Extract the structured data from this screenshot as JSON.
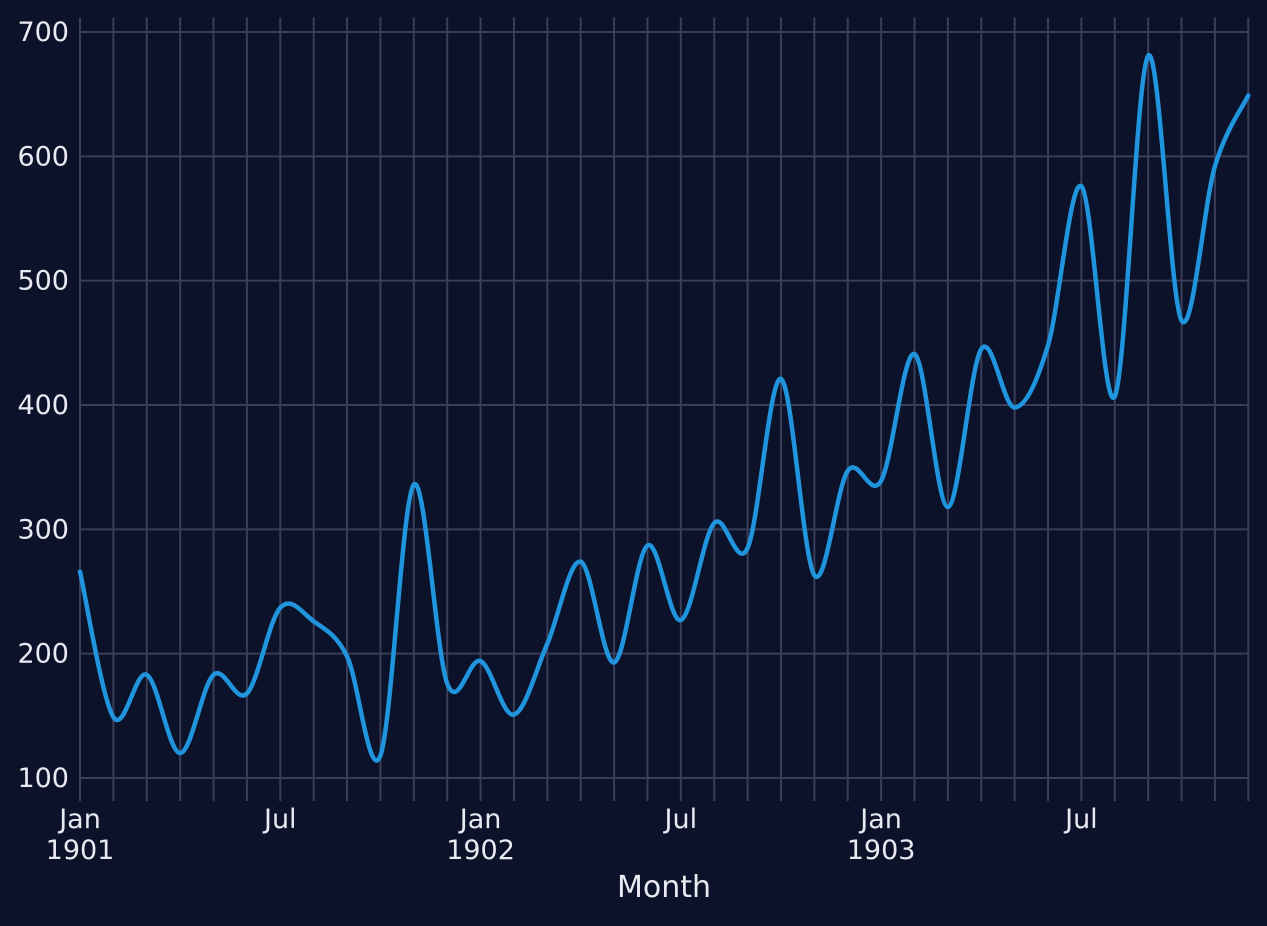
{
  "chart_data": {
    "type": "line",
    "title": "",
    "xlabel": "Month",
    "ylabel": "",
    "x": [
      "Jan 1901",
      "Feb 1901",
      "Mar 1901",
      "Apr 1901",
      "May 1901",
      "Jun 1901",
      "Jul 1901",
      "Aug 1901",
      "Sep 1901",
      "Oct 1901",
      "Nov 1901",
      "Dec 1901",
      "Jan 1902",
      "Feb 1902",
      "Mar 1902",
      "Apr 1902",
      "May 1902",
      "Jun 1902",
      "Jul 1902",
      "Aug 1902",
      "Sep 1902",
      "Oct 1902",
      "Nov 1902",
      "Dec 1902",
      "Jan 1903",
      "Feb 1903",
      "Mar 1903",
      "Apr 1903",
      "May 1903",
      "Jun 1903",
      "Jul 1903",
      "Aug 1903",
      "Sep 1903",
      "Oct 1903",
      "Nov 1903",
      "Dec 1903"
    ],
    "values": [
      266,
      149,
      183,
      120,
      183,
      168,
      237,
      226,
      198,
      118,
      336,
      176,
      194,
      151,
      208,
      274,
      193,
      287,
      227,
      305,
      285,
      421,
      263,
      347,
      339,
      441,
      318,
      445,
      398,
      448,
      576,
      407,
      681,
      468,
      592,
      649
    ],
    "y_ticks": [
      100,
      200,
      300,
      400,
      500,
      600,
      700
    ],
    "x_ticks": [
      {
        "month_index": 0,
        "label": "Jan",
        "sublabel": "1901"
      },
      {
        "month_index": 6,
        "label": "Jul",
        "sublabel": ""
      },
      {
        "month_index": 12,
        "label": "Jan",
        "sublabel": "1902"
      },
      {
        "month_index": 18,
        "label": "Jul",
        "sublabel": ""
      },
      {
        "month_index": 24,
        "label": "Jan",
        "sublabel": "1903"
      },
      {
        "month_index": 30,
        "label": "Jul",
        "sublabel": ""
      }
    ],
    "ylim": [
      89,
      712
    ],
    "grid": true,
    "legend_position": "none",
    "smoothing": "spline",
    "line_width": 4.5,
    "colors": {
      "background": "#0b1229",
      "grid": "#3a3e59",
      "line": "#2095dd",
      "text": "#e9e9f1"
    }
  }
}
